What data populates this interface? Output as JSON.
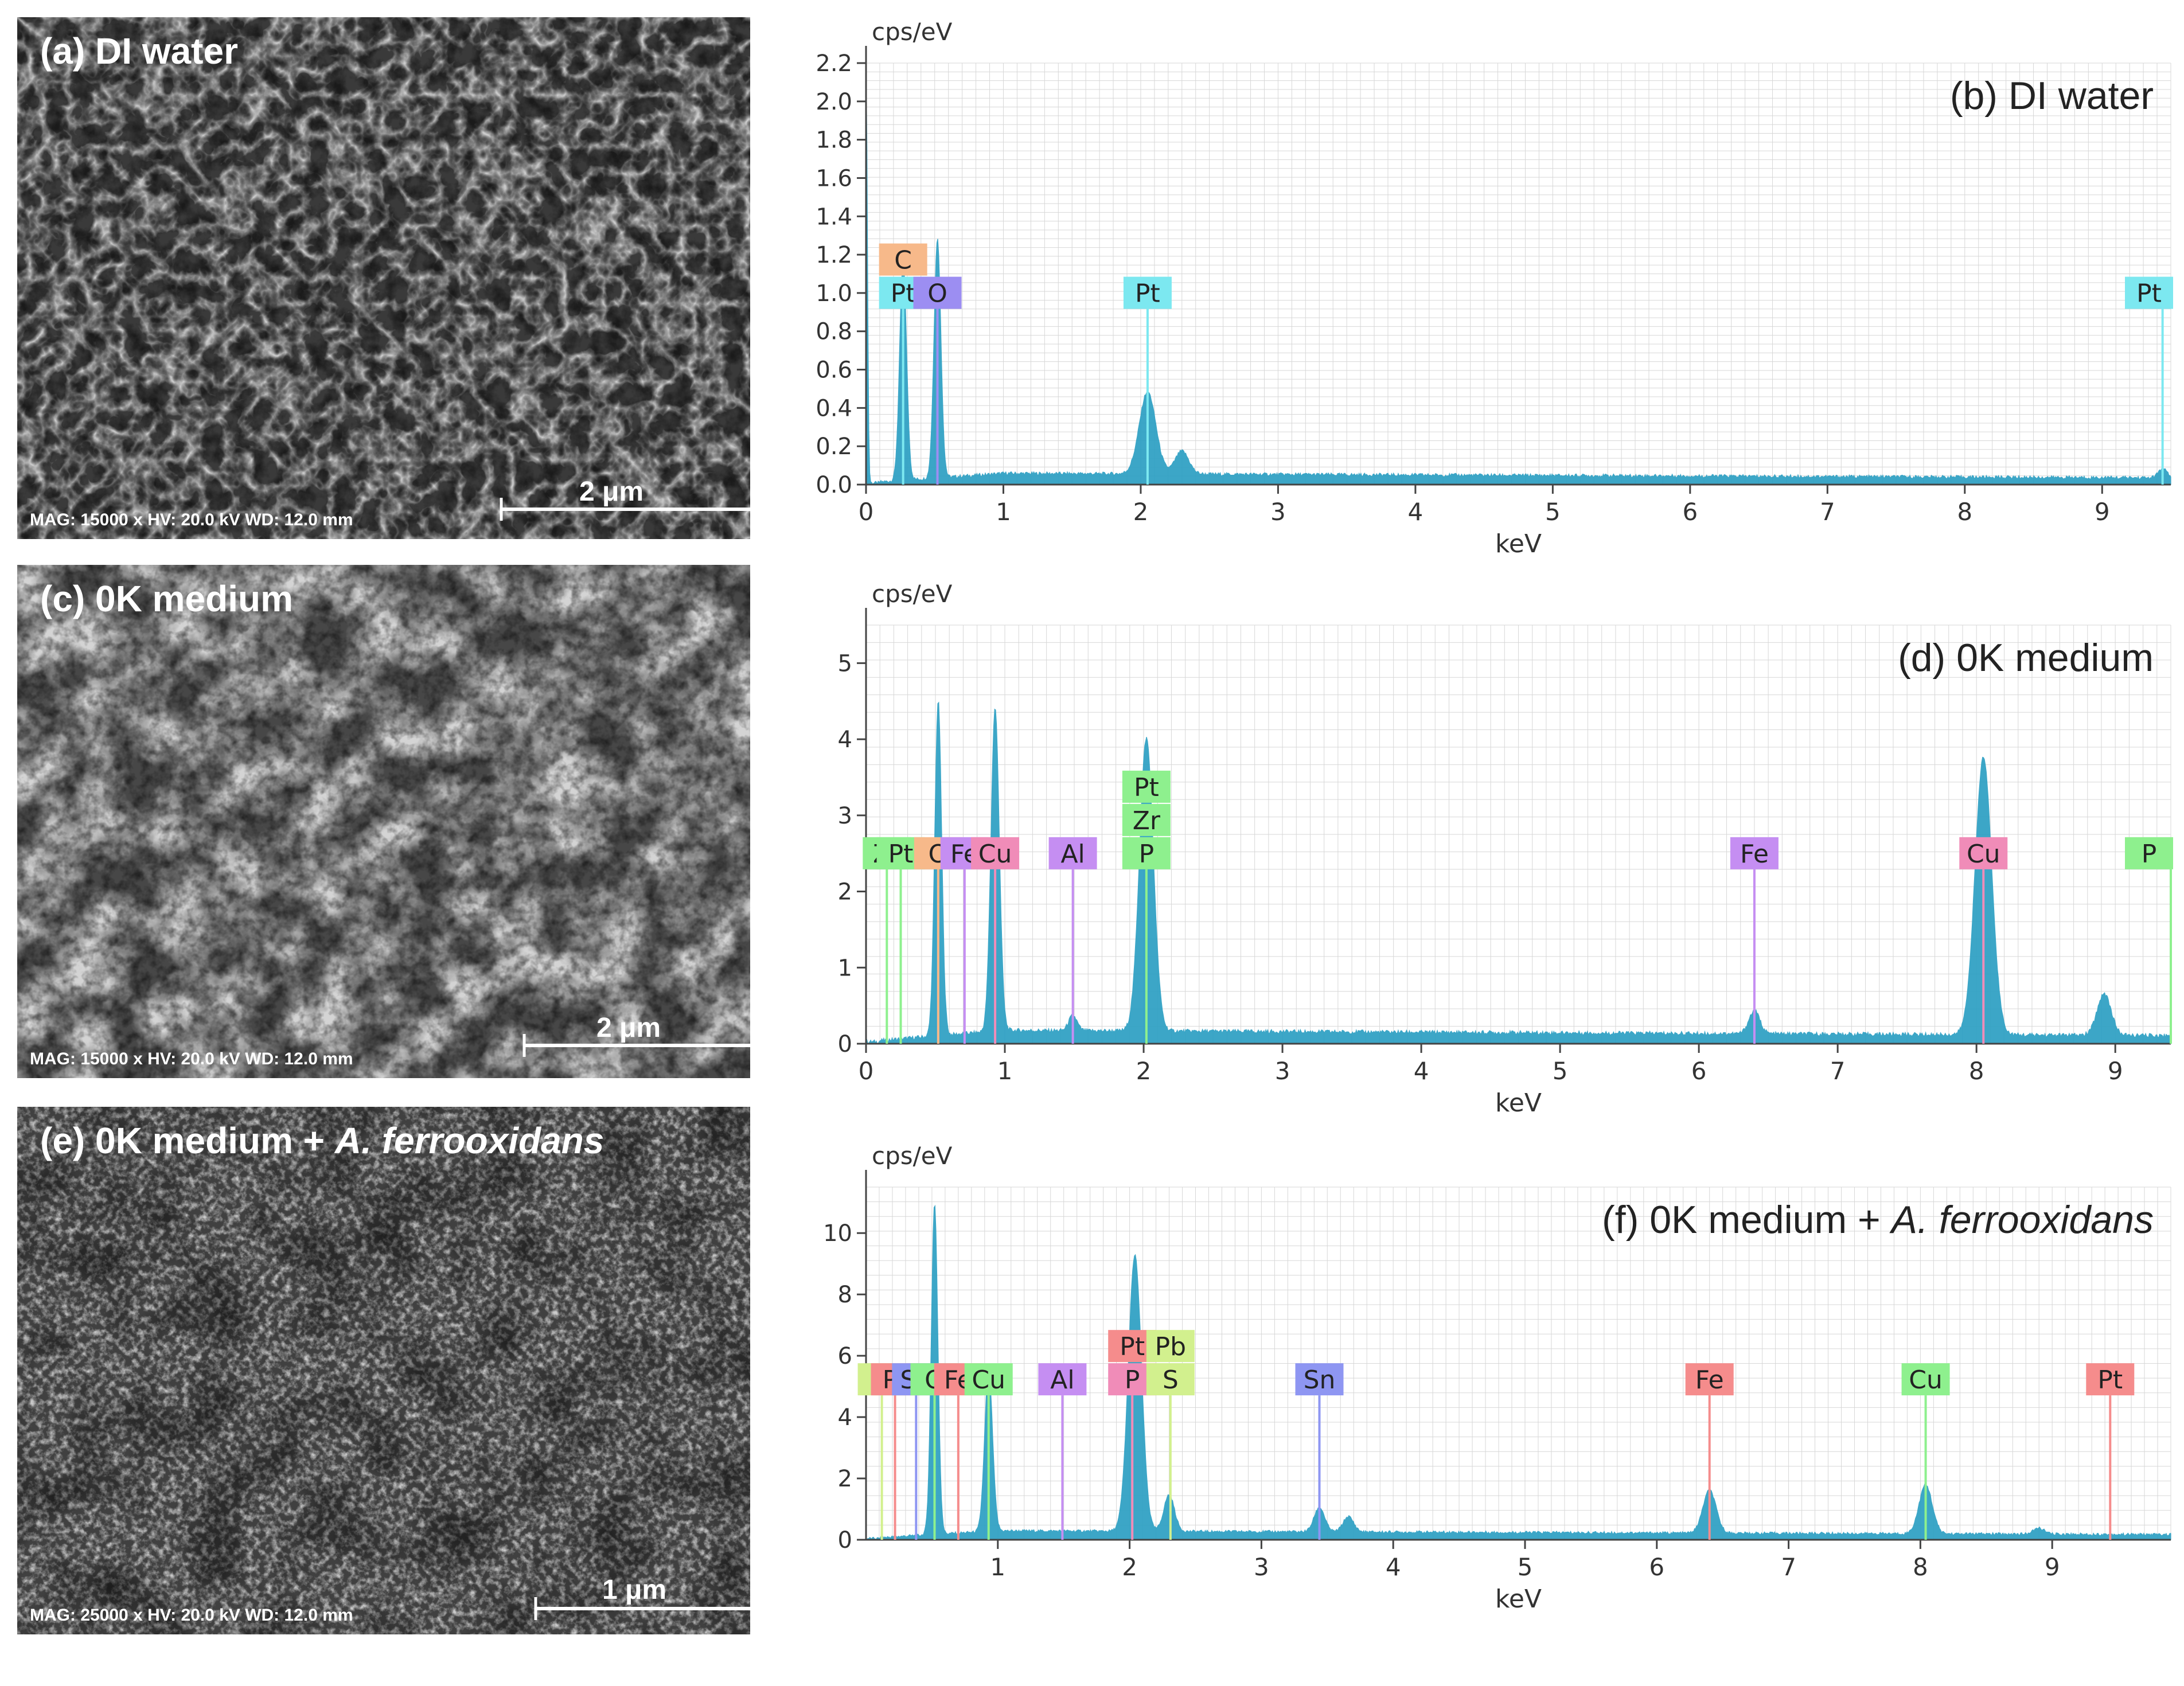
{
  "panels": [
    {
      "label_prefix": "(a) DI water",
      "label_italic": "",
      "info": "MAG: 15000 x HV: 20.0 kV WD: 12.0 mm",
      "scale": "2 μm",
      "texture": "network"
    },
    {
      "label_prefix": "(c) 0K medium",
      "label_italic": "",
      "info": "MAG: 15000 x HV: 20.0 kV WD: 12.0 mm",
      "scale": "2 μm",
      "texture": "crystals"
    },
    {
      "label_prefix": "(e) 0K medium + ",
      "label_italic": "A. ferrooxidans",
      "info": "MAG: 25000 x HV: 20.0 kV WD: 12.0 mm",
      "scale": "1 μm",
      "texture": "granular"
    }
  ],
  "colors": {
    "spectrum": "#2c9fc3",
    "grid": "#d7d7d7",
    "axis": "#444444",
    "Pt_cyan": "#7ce8f0",
    "C": "#f7b98a",
    "O_violet": "#9c8ef2",
    "green": "#8ef08e",
    "pink": "#f08cb8",
    "purple": "#c58ef2",
    "red": "#f58c8c",
    "blue": "#8e96f2",
    "yellow_green": "#d2f08e"
  },
  "chart_data": [
    {
      "type": "area",
      "title_prefix": "(b) DI water",
      "title_italic": "",
      "ylabel": "cps/eV",
      "xlabel": "keV",
      "xlim": [
        0,
        9.5
      ],
      "ylim": [
        0,
        2.2
      ],
      "x_ticks": [
        "0",
        "1",
        "2",
        "3",
        "4",
        "5",
        "6",
        "7",
        "8",
        "9"
      ],
      "y_ticks": [
        "0.0",
        "0.2",
        "0.4",
        "0.6",
        "0.8",
        "1.0",
        "1.2",
        "1.4",
        "1.6",
        "1.8",
        "2.0",
        "2.2"
      ],
      "background": 0.05,
      "peaks": [
        {
          "x": 0.0,
          "h": 2.2,
          "w": 0.01
        },
        {
          "x": 0.27,
          "h": 1.15,
          "w": 0.025
        },
        {
          "x": 0.52,
          "h": 1.25,
          "w": 0.025
        },
        {
          "x": 2.05,
          "h": 0.43,
          "w": 0.06
        },
        {
          "x": 2.3,
          "h": 0.12,
          "w": 0.05
        },
        {
          "x": 9.44,
          "h": 0.05,
          "w": 0.03
        }
      ],
      "markers": [
        {
          "x": 0.27,
          "stack": [
            {
              "label": "Pt",
              "color": "#7ce8f0"
            },
            {
              "label": "C",
              "color": "#f7b98a"
            }
          ]
        },
        {
          "x": 0.52,
          "stack": [
            {
              "label": "O",
              "color": "#9c8ef2"
            }
          ]
        },
        {
          "x": 2.05,
          "stack": [
            {
              "label": "Pt",
              "color": "#7ce8f0"
            }
          ]
        },
        {
          "x": 9.44,
          "stack": [
            {
              "label": "Pt",
              "color": "#7ce8f0"
            }
          ]
        }
      ]
    },
    {
      "type": "area",
      "title_prefix": "(d) 0K medium",
      "title_italic": "",
      "ylabel": "cps/eV",
      "xlabel": "keV",
      "xlim": [
        0,
        9.4
      ],
      "ylim": [
        0,
        5.5
      ],
      "x_ticks": [
        "0",
        "1",
        "2",
        "3",
        "4",
        "5",
        "6",
        "7",
        "8",
        "9"
      ],
      "y_ticks": [
        "0",
        "1",
        "2",
        "3",
        "4",
        "5"
      ],
      "background": 0.15,
      "peaks": [
        {
          "x": 0.52,
          "h": 4.4,
          "w": 0.025
        },
        {
          "x": 0.93,
          "h": 4.25,
          "w": 0.03
        },
        {
          "x": 2.02,
          "h": 3.85,
          "w": 0.05
        },
        {
          "x": 1.49,
          "h": 0.2,
          "w": 0.03
        },
        {
          "x": 6.4,
          "h": 0.3,
          "w": 0.04
        },
        {
          "x": 8.05,
          "h": 3.65,
          "w": 0.06
        },
        {
          "x": 8.92,
          "h": 0.55,
          "w": 0.05
        }
      ],
      "markers": [
        {
          "x": 0.15,
          "stack": [
            {
              "label": "Zr",
              "color": "#8ef08e"
            }
          ]
        },
        {
          "x": 0.25,
          "stack": [
            {
              "label": "Pt",
              "color": "#8ef08e"
            }
          ]
        },
        {
          "x": 0.52,
          "stack": [
            {
              "label": "O",
              "color": "#f7b98a"
            }
          ]
        },
        {
          "x": 0.71,
          "stack": [
            {
              "label": "Fe",
              "color": "#c58ef2"
            }
          ]
        },
        {
          "x": 0.93,
          "stack": [
            {
              "label": "Cu",
              "color": "#f08cb8"
            }
          ]
        },
        {
          "x": 1.49,
          "stack": [
            {
              "label": "Al",
              "color": "#c58ef2"
            }
          ]
        },
        {
          "x": 2.02,
          "stack": [
            {
              "label": "P",
              "color": "#8ef08e"
            },
            {
              "label": "Zr",
              "color": "#8ef08e"
            },
            {
              "label": "Pt",
              "color": "#8ef08e"
            }
          ]
        },
        {
          "x": 6.4,
          "stack": [
            {
              "label": "Fe",
              "color": "#c58ef2"
            }
          ]
        },
        {
          "x": 8.05,
          "stack": [
            {
              "label": "Cu",
              "color": "#f08cb8"
            }
          ]
        },
        {
          "x": 9.4,
          "stack": [
            {
              "label": "P",
              "color": "#8ef08e"
            }
          ]
        }
      ]
    },
    {
      "type": "area",
      "title_prefix": "(f) 0K medium + ",
      "title_italic": "A. ferrooxidans",
      "ylabel": "cps/eV",
      "xlabel": "keV",
      "xlim": [
        0,
        9.9
      ],
      "ylim": [
        0,
        11.5
      ],
      "x_ticks": [
        "1",
        "2",
        "3",
        "4",
        "5",
        "6",
        "7",
        "8",
        "9"
      ],
      "y_ticks": [
        "0",
        "2",
        "4",
        "6",
        "8",
        "10"
      ],
      "background": 0.25,
      "peaks": [
        {
          "x": 0.52,
          "h": 10.8,
          "w": 0.025
        },
        {
          "x": 0.93,
          "h": 5.3,
          "w": 0.03
        },
        {
          "x": 2.04,
          "h": 9.0,
          "w": 0.05
        },
        {
          "x": 2.3,
          "h": 1.2,
          "w": 0.04
        },
        {
          "x": 3.44,
          "h": 0.8,
          "w": 0.04
        },
        {
          "x": 3.66,
          "h": 0.5,
          "w": 0.04
        },
        {
          "x": 6.4,
          "h": 1.4,
          "w": 0.05
        },
        {
          "x": 8.04,
          "h": 1.6,
          "w": 0.05
        },
        {
          "x": 8.9,
          "h": 0.2,
          "w": 0.04
        }
      ],
      "markers": [
        {
          "x": 0.12,
          "stack": [
            {
              "label": "S",
              "color": "#d2f08e"
            }
          ]
        },
        {
          "x": 0.22,
          "stack": [
            {
              "label": "Pt",
              "color": "#f58c8c"
            }
          ]
        },
        {
          "x": 0.38,
          "stack": [
            {
              "label": "Sn",
              "color": "#8e96f2"
            }
          ]
        },
        {
          "x": 0.52,
          "stack": [
            {
              "label": "O",
              "color": "#8ef08e"
            }
          ]
        },
        {
          "x": 0.7,
          "stack": [
            {
              "label": "Fe",
              "color": "#f58c8c"
            }
          ]
        },
        {
          "x": 0.93,
          "stack": [
            {
              "label": "Cu",
              "color": "#8ef08e"
            }
          ]
        },
        {
          "x": 1.49,
          "stack": [
            {
              "label": "Al",
              "color": "#c58ef2"
            }
          ]
        },
        {
          "x": 2.02,
          "stack": [
            {
              "label": "P",
              "color": "#f08cb8"
            },
            {
              "label": "Pt",
              "color": "#f58c8c"
            }
          ]
        },
        {
          "x": 2.31,
          "stack": [
            {
              "label": "S",
              "color": "#d2f08e"
            },
            {
              "label": "Pb",
              "color": "#d2f08e"
            }
          ]
        },
        {
          "x": 3.44,
          "stack": [
            {
              "label": "Sn",
              "color": "#8e96f2"
            }
          ]
        },
        {
          "x": 6.4,
          "stack": [
            {
              "label": "Fe",
              "color": "#f58c8c"
            }
          ]
        },
        {
          "x": 8.04,
          "stack": [
            {
              "label": "Cu",
              "color": "#8ef08e"
            }
          ]
        },
        {
          "x": 9.44,
          "stack": [
            {
              "label": "Pt",
              "color": "#f58c8c"
            }
          ]
        }
      ]
    }
  ]
}
